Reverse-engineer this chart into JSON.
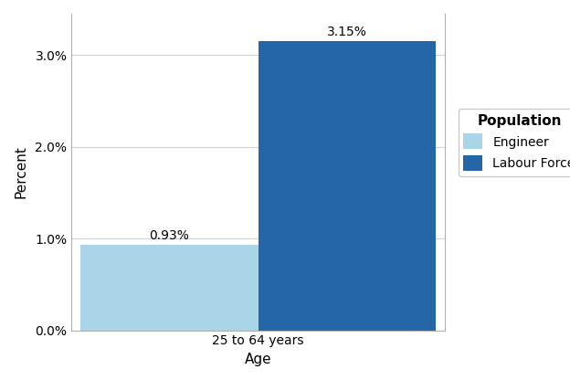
{
  "categories": [
    "Engineer",
    "Labour Force"
  ],
  "values": [
    0.0093,
    0.0315
  ],
  "labels": [
    "0.93%",
    "3.15%"
  ],
  "bar_colors": [
    "#aad4e8",
    "#2566a8"
  ],
  "xlabel": "Age",
  "ylabel": "Percent",
  "xticklabel": "25 to 64 years",
  "ylim": [
    0,
    0.0345
  ],
  "yticks": [
    0.0,
    0.01,
    0.02,
    0.03
  ],
  "ytick_labels": [
    "0.0%",
    "1.0%",
    "2.0%",
    "3.0%"
  ],
  "legend_title": "Population",
  "legend_labels": [
    "Engineer",
    "Labour Force"
  ],
  "legend_colors": [
    "#aad4e8",
    "#2566a8"
  ],
  "background_color": "#ffffff",
  "grid_color": "#d3d3d3",
  "bar_width": 0.4,
  "label_fontsize": 10,
  "axis_fontsize": 11,
  "legend_fontsize": 10
}
